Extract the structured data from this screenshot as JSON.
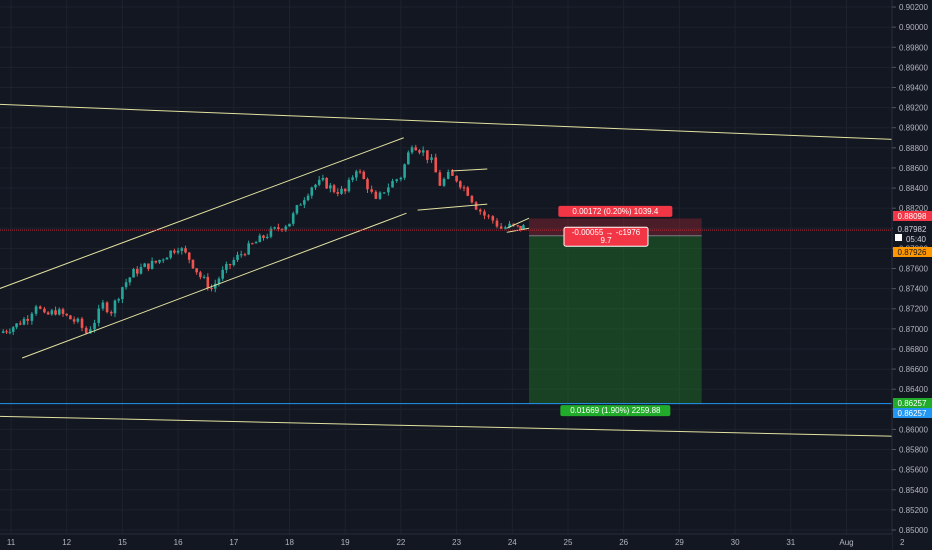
{
  "chart_data": {
    "type": "candlestick",
    "y_axis": {
      "ylim": [
        0.8496,
        0.9027
      ],
      "ticks": [
        "0.90200",
        "0.90000",
        "0.89800",
        "0.89600",
        "0.89400",
        "0.89200",
        "0.89000",
        "0.88800",
        "0.88600",
        "0.88400",
        "0.88200",
        "0.88000",
        "0.87800",
        "0.87600",
        "0.87400",
        "0.87200",
        "0.87000",
        "0.86800",
        "0.86600",
        "0.86400",
        "0.86200",
        "0.86000",
        "0.85800",
        "0.85600",
        "0.85400",
        "0.85200",
        "0.85000"
      ]
    },
    "x_axis": {
      "ticks": [
        {
          "label": "11",
          "day": 11
        },
        {
          "label": "12",
          "day": 12
        },
        {
          "label": "15",
          "day": 13
        },
        {
          "label": "16",
          "day": 14
        },
        {
          "label": "17",
          "day": 15
        },
        {
          "label": "18",
          "day": 16
        },
        {
          "label": "19",
          "day": 17
        },
        {
          "label": "22",
          "day": 18
        },
        {
          "label": "23",
          "day": 19
        },
        {
          "label": "24",
          "day": 20
        },
        {
          "label": "25",
          "day": 21
        },
        {
          "label": "26",
          "day": 22
        },
        {
          "label": "29",
          "day": 23
        },
        {
          "label": "30",
          "day": 24
        },
        {
          "label": "31",
          "day": 25
        },
        {
          "label": "Aug",
          "day": 26
        },
        {
          "label": "2",
          "day": 27
        }
      ]
    },
    "path_points": [
      [
        10.8,
        0.8696
      ],
      [
        11.1,
        0.8704
      ],
      [
        11.3,
        0.8712
      ],
      [
        11.45,
        0.8725
      ],
      [
        11.6,
        0.8712
      ],
      [
        11.8,
        0.8718
      ],
      [
        12.0,
        0.8712
      ],
      [
        12.2,
        0.8706
      ],
      [
        12.35,
        0.8696
      ],
      [
        12.5,
        0.8708
      ],
      [
        12.65,
        0.8724
      ],
      [
        12.8,
        0.8718
      ],
      [
        13.0,
        0.8742
      ],
      [
        13.2,
        0.8756
      ],
      [
        13.4,
        0.8762
      ],
      [
        13.6,
        0.8766
      ],
      [
        13.8,
        0.8774
      ],
      [
        14.0,
        0.8782
      ],
      [
        14.2,
        0.877
      ],
      [
        14.4,
        0.8752
      ],
      [
        14.6,
        0.874
      ],
      [
        14.8,
        0.8756
      ],
      [
        15.0,
        0.8768
      ],
      [
        15.2,
        0.8778
      ],
      [
        15.4,
        0.8786
      ],
      [
        15.6,
        0.8794
      ],
      [
        15.8,
        0.88
      ],
      [
        16.0,
        0.8806
      ],
      [
        16.2,
        0.8826
      ],
      [
        16.4,
        0.8842
      ],
      [
        16.6,
        0.8846
      ],
      [
        16.8,
        0.8838
      ],
      [
        17.0,
        0.8836
      ],
      [
        17.2,
        0.886
      ],
      [
        17.4,
        0.8842
      ],
      [
        17.55,
        0.8826
      ],
      [
        17.7,
        0.8838
      ],
      [
        17.85,
        0.8846
      ],
      [
        18.0,
        0.8852
      ],
      [
        18.2,
        0.8885
      ],
      [
        18.4,
        0.8876
      ],
      [
        18.55,
        0.8866
      ],
      [
        18.7,
        0.8844
      ],
      [
        18.85,
        0.8852
      ],
      [
        19.0,
        0.8849
      ],
      [
        19.2,
        0.8836
      ],
      [
        19.35,
        0.8822
      ],
      [
        19.5,
        0.8813
      ],
      [
        19.65,
        0.8808
      ],
      [
        19.8,
        0.88
      ],
      [
        19.95,
        0.8802
      ],
      [
        20.1,
        0.88
      ],
      [
        20.2,
        0.8801
      ]
    ],
    "lines": [
      {
        "name": "upper-horizontal",
        "color": "#e3e2a0",
        "x1": 10.0,
        "y1": 0.8925,
        "x2": 27.0,
        "y2": 0.8888
      },
      {
        "name": "lower-horizontal",
        "color": "#e3e2a0",
        "x1": 10.0,
        "y1": 0.8614,
        "x2": 27.0,
        "y2": 0.8593
      },
      {
        "name": "channel-upper",
        "color": "#e3e2a0",
        "x1": 10.6,
        "y1": 0.8736,
        "x2": 18.05,
        "y2": 0.889
      },
      {
        "name": "channel-lower",
        "color": "#e3e2a0",
        "x1": 11.2,
        "y1": 0.8671,
        "x2": 18.1,
        "y2": 0.8815
      },
      {
        "name": "flag-upper",
        "color": "#e3e2a0",
        "x1": 18.9,
        "y1": 0.8857,
        "x2": 19.55,
        "y2": 0.8859
      },
      {
        "name": "flag-lower",
        "color": "#e3e2a0",
        "x1": 18.3,
        "y1": 0.8818,
        "x2": 19.55,
        "y2": 0.8824
      },
      {
        "name": "wedge-upper",
        "color": "#e3e2a0",
        "x1": 19.9,
        "y1": 0.88,
        "x2": 20.3,
        "y2": 0.881
      },
      {
        "name": "wedge-lower",
        "color": "#e3e2a0",
        "x1": 19.9,
        "y1": 0.8796,
        "x2": 20.3,
        "y2": 0.88
      }
    ],
    "position": {
      "entry": 0.87926,
      "stop": 0.88098,
      "target": 0.86257,
      "x_start": 20.3,
      "x_end": 23.4,
      "stop_label": "0.00172 (0.20%) 1039.4",
      "mid_label_line1": "-0.00055 → -c1976",
      "mid_label_line2": "9.7",
      "target_label": "0.01669 (1.90%) 2259.88"
    },
    "price_tags": [
      {
        "value": 0.88098,
        "text": "0.88098",
        "bg": "#f23645",
        "fg": "#ffffff"
      },
      {
        "value": 0.87982,
        "text": "0.87982",
        "bg": "#131722",
        "fg": "#d1d4dc",
        "extra": "05:40"
      },
      {
        "value": 0.87926,
        "text": "0.87926",
        "bg": "#ff9800",
        "fg": "#131722"
      },
      {
        "value": 0.86257,
        "text": "0.86257",
        "bg": "#22ab2b",
        "fg": "#ffffff"
      },
      {
        "value": 0.86257,
        "text": "0.86257",
        "bg": "#2196f3",
        "fg": "#ffffff"
      }
    ],
    "colors": {
      "background": "#131722",
      "up": "#26a69a",
      "down": "#ef5350",
      "grid": "#1e222d",
      "guide_red": "#b22833",
      "guide_blue": "#2196f3",
      "loss_zone": "rgba(178,40,51,0.35)",
      "profit_zone": "rgba(34,120,40,0.45)"
    }
  }
}
